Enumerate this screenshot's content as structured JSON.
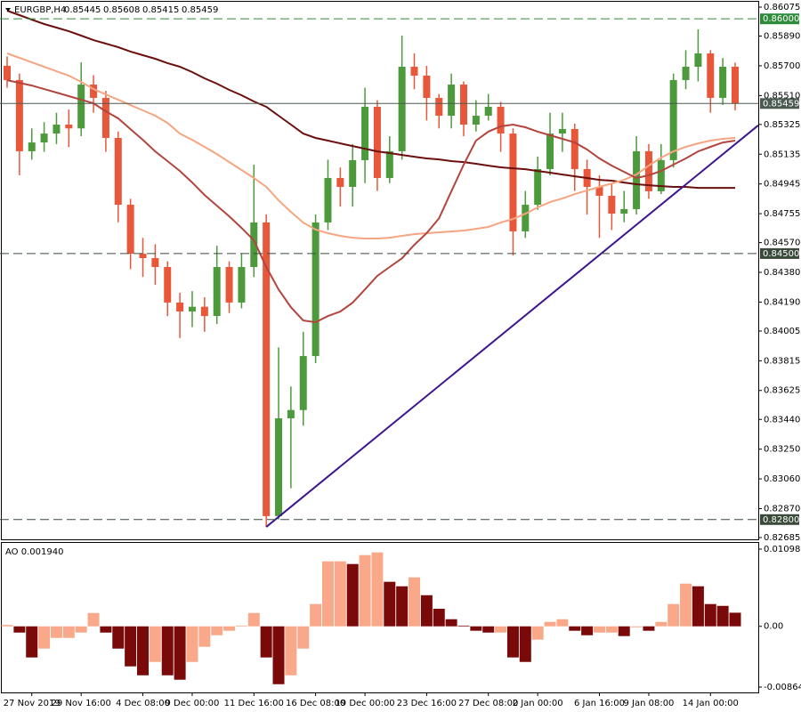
{
  "chart_data": [
    {
      "type": "candlestick",
      "symbol": "EURGBP,H4",
      "quote": [
        0.85445,
        0.85608,
        0.85415,
        0.85459
      ],
      "ylim": [
        0.82685,
        0.86075
      ],
      "yticks": [
        0.86075,
        {
          "value": 0.8589,
          "label": "0.85890"
        },
        {
          "value": 0.857,
          "label": "0.85700"
        },
        {
          "value": 0.8551,
          "label": "0.85510"
        },
        0.85325,
        0.85135,
        0.84945,
        0.84755,
        {
          "value": 0.8457,
          "label": "0.84570"
        },
        {
          "value": 0.8438,
          "label": "0.84380"
        },
        {
          "value": 0.8419,
          "label": "0.84190"
        },
        0.84005,
        0.83815,
        0.83625,
        {
          "value": 0.8344,
          "label": "0.83440"
        },
        {
          "value": 0.8325,
          "label": "0.83250"
        },
        {
          "value": 0.8306,
          "label": "0.83060"
        },
        {
          "value": 0.8287,
          "label": "0.82870"
        },
        0.82685
      ],
      "grid": false,
      "up_color": "#4d9a3c",
      "down_color": "#e9573a",
      "open": [
        0.857,
        0.85609,
        0.85154,
        0.8521,
        0.85267,
        0.85324,
        0.853,
        0.8558,
        0.85495,
        0.85239,
        0.84812,
        0.84499,
        0.84471,
        0.84414,
        0.84187,
        0.8413,
        0.8416,
        0.84101,
        0.84414,
        0.84187,
        0.84414,
        0.84699,
        0.82822,
        0.83447,
        0.835,
        0.83845,
        0.84699,
        0.84983,
        0.84926,
        0.85097,
        0.85438,
        0.84983,
        0.85154,
        0.85694,
        0.85637,
        0.85495,
        0.85381,
        0.8558,
        0.85324,
        0.85381,
        0.85438,
        0.85267,
        0.84642,
        0.84812,
        0.8504,
        0.85267,
        0.85296,
        0.8504,
        0.84926,
        0.84869,
        0.84755,
        0.84784,
        0.85154,
        0.84898,
        0.85097,
        0.85609,
        0.85694,
        0.85779,
        0.85495,
        0.85694
      ],
      "high": [
        0.8576,
        0.8565,
        0.853,
        0.8534,
        0.854,
        0.8542,
        0.85722,
        0.8564,
        0.8554,
        0.8528,
        0.8485,
        0.846,
        0.8456,
        0.8445,
        0.8425,
        0.8426,
        0.8422,
        0.8455,
        0.8445,
        0.845,
        0.85068,
        0.8475,
        0.839,
        0.8365,
        0.84,
        0.8475,
        0.851,
        0.8505,
        0.852,
        0.8556,
        0.8548,
        0.8525,
        0.85893,
        0.8578,
        0.857,
        0.8552,
        0.8565,
        0.856,
        0.8548,
        0.8552,
        0.8547,
        0.853,
        0.849,
        0.8512,
        0.854,
        0.854,
        0.8533,
        0.851,
        0.85,
        0.8495,
        0.849,
        0.8525,
        0.852,
        0.852,
        0.8565,
        0.858,
        0.85933,
        0.858,
        0.8575,
        0.8572
      ],
      "low": [
        0.8556,
        0.85,
        0.851,
        0.8515,
        0.852,
        0.8518,
        0.8525,
        0.854,
        0.8515,
        0.847,
        0.844,
        0.8435,
        0.843,
        0.841,
        0.8396,
        0.8403,
        0.84,
        0.8405,
        0.8412,
        0.8415,
        0.8435,
        0.82753,
        0.828,
        0.83,
        0.834,
        0.838,
        0.8465,
        0.848,
        0.848,
        0.8495,
        0.849,
        0.8495,
        0.851,
        0.8555,
        0.8535,
        0.853,
        0.853,
        0.8525,
        0.8528,
        0.8535,
        0.8515,
        0.84488,
        0.846,
        0.8478,
        0.85,
        0.8515,
        0.849,
        0.8475,
        0.846,
        0.8465,
        0.847,
        0.8475,
        0.8485,
        0.8488,
        0.8505,
        0.8555,
        0.856,
        0.854,
        0.8545,
        0.85415
      ],
      "close": [
        0.85609,
        0.85154,
        0.8521,
        0.85267,
        0.85324,
        0.853,
        0.8558,
        0.85495,
        0.85239,
        0.84812,
        0.84499,
        0.84471,
        0.84414,
        0.84187,
        0.8413,
        0.8416,
        0.84101,
        0.84414,
        0.84187,
        0.84414,
        0.84699,
        0.82822,
        0.83447,
        0.835,
        0.83845,
        0.84699,
        0.84983,
        0.84926,
        0.85097,
        0.85438,
        0.84983,
        0.85154,
        0.85694,
        0.85637,
        0.85495,
        0.85381,
        0.8558,
        0.85324,
        0.85381,
        0.85438,
        0.85267,
        0.84642,
        0.84812,
        0.8504,
        0.85267,
        0.85296,
        0.8504,
        0.84926,
        0.84869,
        0.84755,
        0.84784,
        0.85154,
        0.84898,
        0.85097,
        0.85609,
        0.85694,
        0.85779,
        0.85495,
        0.85694,
        0.85459
      ],
      "series": [
        {
          "color": "#6b0f0f",
          "values": [
            0.86052,
            0.86024,
            0.85995,
            0.85967,
            0.85944,
            0.85921,
            0.85893,
            0.85864,
            0.85842,
            0.85819,
            0.85791,
            0.85768,
            0.85745,
            0.85717,
            0.85694,
            0.8566,
            0.8562,
            0.85586,
            0.85546,
            0.85512,
            0.85472,
            0.85438,
            0.85381,
            0.85324,
            0.85267,
            0.85239,
            0.85222,
            0.85204,
            0.85187,
            0.8517,
            0.85153,
            0.85142,
            0.8513,
            0.85119,
            0.85108,
            0.85102,
            0.85091,
            0.85085,
            0.85074,
            0.85062,
            0.85051,
            0.85045,
            0.85039,
            0.85028,
            0.85017,
            0.85005,
            0.84994,
            0.84983,
            0.84971,
            0.84966,
            0.84954,
            0.84943,
            0.84937,
            0.84931,
            0.84926,
            0.84926,
            0.8492,
            0.8492,
            0.8492,
            0.8492
          ]
        },
        {
          "color": "#f5a582",
          "values": [
            0.85779,
            0.85751,
            0.85722,
            0.85694,
            0.85665,
            0.85637,
            0.85597,
            0.85551,
            0.85517,
            0.85483,
            0.85449,
            0.85415,
            0.85381,
            0.85335,
            0.85267,
            0.85227,
            0.85182,
            0.85136,
            0.85085,
            0.85034,
            0.84983,
            0.84926,
            0.8484,
            0.84766,
            0.84698,
            0.84653,
            0.8463,
            0.84613,
            0.84601,
            0.84596,
            0.84596,
            0.84601,
            0.84613,
            0.84624,
            0.8463,
            0.84636,
            0.84641,
            0.84647,
            0.84658,
            0.8467,
            0.84698,
            0.84721,
            0.84755,
            0.84795,
            0.84829,
            0.84852,
            0.8488,
            0.84903,
            0.84926,
            0.84948,
            0.84971,
            0.85005,
            0.85062,
            0.85113,
            0.85153,
            0.85182,
            0.85204,
            0.85222,
            0.85233,
            0.85239
          ]
        },
        {
          "color": "#b3443e",
          "values": [
            0.85608,
            0.85591,
            0.85574,
            0.85551,
            0.85529,
            0.85506,
            0.85483,
            0.8546,
            0.85409,
            0.85364,
            0.85295,
            0.85227,
            0.85153,
            0.85091,
            0.85028,
            0.84954,
            0.84874,
            0.84806,
            0.84738,
            0.84664,
            0.84584,
            0.84414,
            0.84271,
            0.84157,
            0.84072,
            0.84061,
            0.84101,
            0.84129,
            0.84186,
            0.84271,
            0.84357,
            0.84414,
            0.8447,
            0.84556,
            0.8463,
            0.84726,
            0.84897,
            0.85068,
            0.85222,
            0.85279,
            0.85313,
            0.85324,
            0.85307,
            0.85279,
            0.85256,
            0.85233,
            0.8521,
            0.85165,
            0.85108,
            0.85062,
            0.85022,
            0.84983,
            0.85,
            0.85028,
            0.85068,
            0.85108,
            0.85153,
            0.85182,
            0.8521,
            0.85222
          ]
        }
      ],
      "levels": [
        {
          "value": 0.86,
          "label": "0.86000",
          "color": "#2e8b3a",
          "dashed": true
        },
        {
          "value": 0.845,
          "label": "0.84500",
          "color": "#3a4a3a",
          "dashed": true
        },
        {
          "value": 0.828,
          "label": "0.82800",
          "color": "#3a4a3a",
          "dashed": true
        },
        {
          "value": 0.85459,
          "label": "0.85459",
          "color": "#4a5a50",
          "dashed": false
        }
      ],
      "trendline": {
        "x": [
          21,
          59
        ],
        "y": [
          0.82753,
          0.85199
        ],
        "color": "#3d1590"
      }
    },
    {
      "type": "bar",
      "title": "AO 0.001940",
      "ylim": [
        -0.008648,
        0.010988
      ],
      "yticks": [
        0.010988,
        {
          "value": 0,
          "label": "0.00"
        },
        -0.008648
      ],
      "up_color": "#f9a98a",
      "down_color": "#7a0a0a",
      "categories": [
        null,
        null,
        "27 Nov 2019",
        null,
        null,
        null,
        "29 Nov 16:00",
        null,
        null,
        null,
        null,
        "4 Dec 08:00",
        null,
        null,
        null,
        "9 Dec 00:00",
        null,
        null,
        null,
        null,
        "11 Dec 16:00",
        null,
        null,
        null,
        null,
        "16 Dec 08:00",
        null,
        null,
        null,
        "19 Dec 00:00",
        null,
        null,
        null,
        null,
        "23 Dec 16:00",
        null,
        null,
        null,
        null,
        "27 Dec 08:00",
        null,
        null,
        null,
        "2 Jan 00:00",
        null,
        null,
        null,
        null,
        "6 Jan 16:00",
        null,
        null,
        null,
        "9 Jan 08:00",
        null,
        null,
        null,
        null,
        "14 Jan 00:00",
        null,
        null
      ],
      "values": [
        0.0002,
        -0.00089,
        -0.00443,
        -0.00317,
        -0.00165,
        -0.00165,
        -0.00089,
        0.0019,
        -0.00089,
        -0.00317,
        -0.0057,
        -0.00697,
        -0.00507,
        -0.00697,
        -0.0076,
        -0.00507,
        -0.00291,
        -0.00127,
        -0.00063,
        0.0001,
        0.0019,
        -0.00443,
        -0.00824,
        -0.00697,
        -0.00317,
        0.00317,
        0.00925,
        0.00925,
        0.00887,
        0.01014,
        0.01052,
        0.00634,
        0.0057,
        0.00697,
        0.00443,
        0.0025,
        0.00101,
        0.0001,
        -0.00063,
        -0.00089,
        -0.00089,
        -0.00443,
        -0.00507,
        -0.0019,
        0.00063,
        0.00101,
        -0.00063,
        -0.00127,
        -0.00089,
        -0.00089,
        -0.00139,
        -0.00013,
        -0.00063,
        0.00063,
        0.00317,
        0.00608,
        0.0057,
        0.00317,
        0.00291,
        0.00194
      ]
    }
  ]
}
